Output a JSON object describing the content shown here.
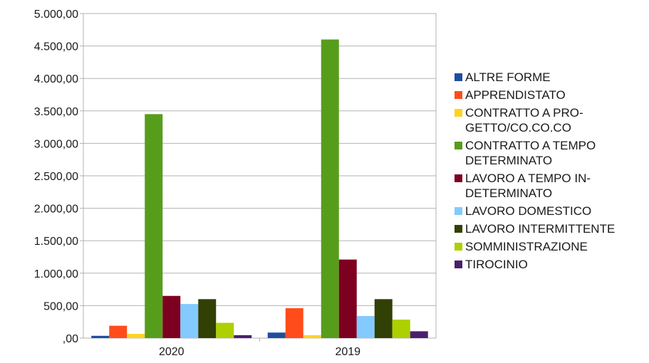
{
  "chart_data": {
    "type": "bar",
    "categories": [
      "2020",
      "2019"
    ],
    "ylim": [
      0,
      5000
    ],
    "ytick_values": [
      0,
      500,
      1000,
      1500,
      2000,
      2500,
      3000,
      3500,
      4000,
      4500,
      5000
    ],
    "ytick_labels": [
      ",00",
      "500,00",
      "1.000,00",
      "1.500,00",
      "2.000,00",
      "2.500,00",
      "3.000,00",
      "3.500,00",
      "4.000,00",
      "4.500,00",
      "5.000,00"
    ],
    "grid": true,
    "legend_position": "right",
    "series": [
      {
        "name": "ALTRE FORME",
        "label": "ALTRE FORME",
        "color": "#1f4e9e",
        "values": [
          35,
          85
        ]
      },
      {
        "name": "APPRENDISTATO",
        "label": "APPRENDISTATO",
        "color": "#ff4c1a",
        "values": [
          190,
          460
        ]
      },
      {
        "name": "CONTRATTO A PROGETTO/CO.CO.CO",
        "label": "CONTRATTO A PRO-\nGETTO/CO.CO.CO",
        "color": "#ffd320",
        "values": [
          65,
          45
        ]
      },
      {
        "name": "CONTRATTO A TEMPO DETERMINATO",
        "label": "CONTRATTO A TEMPO\nDETERMINATO",
        "color": "#579d1c",
        "values": [
          3450,
          4600
        ]
      },
      {
        "name": "LAVORO A TEMPO INDETERMINATO",
        "label": "LAVORO A TEMPO IN-\nDETERMINATO",
        "color": "#7e0021",
        "values": [
          650,
          1210
        ]
      },
      {
        "name": "LAVORO DOMESTICO",
        "label": "LAVORO DOMESTICO",
        "color": "#83caff",
        "values": [
          525,
          340
        ]
      },
      {
        "name": "LAVORO INTERMITTENTE",
        "label": "LAVORO INTERMITTENTE",
        "color": "#314004",
        "values": [
          600,
          600
        ]
      },
      {
        "name": "SOMMINISTRAZIONE",
        "label": "SOMMINISTRAZIONE",
        "color": "#aecf00",
        "values": [
          235,
          285
        ]
      },
      {
        "name": "TIROCINIO",
        "label": "TIROCINIO",
        "color": "#4b1f6f",
        "values": [
          45,
          105
        ]
      }
    ]
  }
}
